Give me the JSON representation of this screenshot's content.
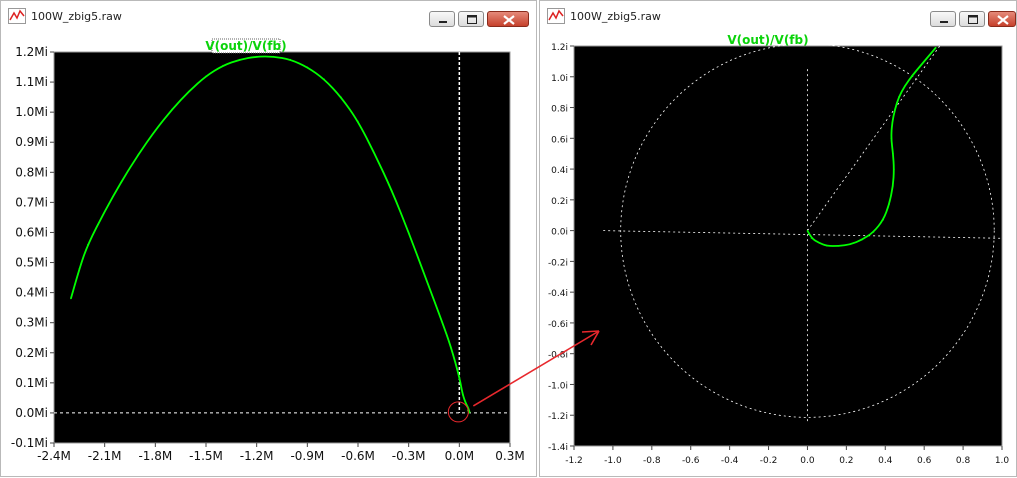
{
  "windows": [
    {
      "id": "left",
      "title": "100W_zbig5.raw",
      "trace_label": "V(out)/V(fb)",
      "x_ticks": [
        "-2.4M",
        "-2.1M",
        "-1.8M",
        "-1.5M",
        "-1.2M",
        "-0.9M",
        "-0.6M",
        "-0.3M",
        "0.0M",
        "0.3M"
      ],
      "y_ticks": [
        "1.2Mi",
        "1.1Mi",
        "1.0Mi",
        "0.9Mi",
        "0.8Mi",
        "0.7Mi",
        "0.6Mi",
        "0.5Mi",
        "0.4Mi",
        "0.3Mi",
        "0.2Mi",
        "0.1Mi",
        "0.0Mi",
        "-0.1Mi"
      ]
    },
    {
      "id": "right",
      "title": "100W_zbig5.raw",
      "trace_label": "V(out)/V(fb)",
      "x_ticks": [
        "-1.2",
        "-1.0",
        "-0.8",
        "-0.6",
        "-0.4",
        "-0.2",
        "0.0",
        "0.2",
        "0.4",
        "0.6",
        "0.8",
        "1.0"
      ],
      "y_ticks": [
        "1.2i",
        "1.0i",
        "0.8i",
        "0.6i",
        "0.4i",
        "0.2i",
        "0.0i",
        "-0.2i",
        "-0.4i",
        "-0.6i",
        "-0.8i",
        "-1.0i",
        "-1.2i",
        "-1.4i"
      ]
    }
  ],
  "colors": {
    "trace": "#00ff00",
    "plot_background": "#000000",
    "grid_lines": "#ffffff",
    "annotation": "#e8282d"
  },
  "chart_data": [
    {
      "type": "line",
      "title": "V(out)/V(fb)",
      "x_unit": "M",
      "y_unit": "Mi",
      "xlim": [
        -2.4,
        0.3
      ],
      "ylim": [
        -0.1,
        1.2
      ],
      "series": [
        {
          "name": "V(out)/V(fb)",
          "x": [
            -2.3,
            -2.25,
            -2.2,
            -2.1,
            -2.0,
            -1.9,
            -1.8,
            -1.7,
            -1.6,
            -1.5,
            -1.4,
            -1.3,
            -1.2,
            -1.1,
            -1.0,
            -0.9,
            -0.8,
            -0.7,
            -0.6,
            -0.5,
            -0.4,
            -0.3,
            -0.2,
            -0.1,
            -0.05,
            0.0,
            0.02,
            0.04,
            0.05,
            0.06,
            0.06,
            0.05
          ],
          "y": [
            0.38,
            0.48,
            0.56,
            0.67,
            0.77,
            0.86,
            0.94,
            1.01,
            1.07,
            1.12,
            1.155,
            1.175,
            1.185,
            1.185,
            1.175,
            1.15,
            1.11,
            1.05,
            0.97,
            0.86,
            0.74,
            0.6,
            0.45,
            0.3,
            0.22,
            0.12,
            0.06,
            0.03,
            0.02,
            0.005,
            0.0,
            0.01
          ]
        }
      ]
    },
    {
      "type": "line",
      "title": "V(out)/V(fb)",
      "x_unit": "",
      "y_unit": "i",
      "xlim": [
        -1.2,
        1.0
      ],
      "ylim": [
        -1.4,
        1.2
      ],
      "grid": false,
      "series": [
        {
          "name": "V(out)/V(fb)",
          "x": [
            0.0,
            0.02,
            0.06,
            0.1,
            0.16,
            0.22,
            0.28,
            0.34,
            0.39,
            0.42,
            0.44,
            0.445,
            0.44,
            0.43,
            0.435,
            0.45,
            0.47,
            0.5,
            0.54,
            0.58,
            0.62,
            0.66
          ],
          "y": [
            0.0,
            -0.05,
            -0.08,
            -0.1,
            -0.1,
            -0.09,
            -0.06,
            -0.01,
            0.07,
            0.17,
            0.29,
            0.4,
            0.5,
            0.6,
            0.7,
            0.79,
            0.87,
            0.94,
            1.01,
            1.07,
            1.13,
            1.19
          ]
        }
      ]
    }
  ]
}
